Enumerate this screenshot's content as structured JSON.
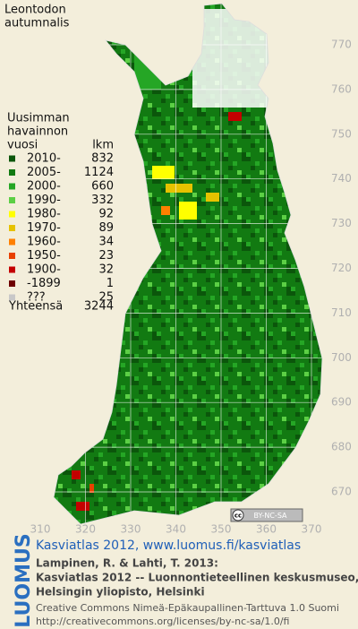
{
  "title": [
    "Leontodon",
    "autumnalis"
  ],
  "legend": {
    "heading": [
      "Uusimman",
      "havainnon",
      "vuosi"
    ],
    "count_heading": "lkm",
    "rows": [
      {
        "label": "2010-",
        "count": 832,
        "color": "#0b560b"
      },
      {
        "label": "2005-",
        "count": 1124,
        "color": "#127a12"
      },
      {
        "label": "2000-",
        "count": 660,
        "color": "#25a625"
      },
      {
        "label": "1990-",
        "count": 332,
        "color": "#5ccf45"
      },
      {
        "label": "1980-",
        "count": 92,
        "color": "#ffff00"
      },
      {
        "label": "1970-",
        "count": 89,
        "color": "#e6c200"
      },
      {
        "label": "1960-",
        "count": 34,
        "color": "#ff8000"
      },
      {
        "label": "1950-",
        "count": 23,
        "color": "#e84000"
      },
      {
        "label": "1900-",
        "count": 32,
        "color": "#c40000"
      },
      {
        "label": "-1899",
        "count": 1,
        "color": "#6e0000"
      },
      {
        "label": "???",
        "count": 25,
        "color": "#c8c8c8"
      }
    ],
    "total_label": "Yhteensä",
    "total": 3244
  },
  "map": {
    "yticks": [
      770,
      760,
      750,
      740,
      730,
      720,
      710,
      700,
      690,
      680,
      670
    ],
    "xticks": [
      310,
      320,
      330,
      340,
      350,
      360,
      370
    ],
    "badge": {
      "icon": "cc",
      "text": "BY-NC-SA"
    }
  },
  "credits": {
    "logo": "LUOMUS",
    "link": "Kasviatlas 2012, www.luomus.fi/kasviatlas",
    "citation": [
      "Lampinen, R. & Lahti, T. 2013:",
      "Kasviatlas 2012 -- Luonnontieteellinen keskusmuseo,",
      "Helsingin yliopisto, Helsinki"
    ],
    "license": [
      "Creative Commons Nimeä-Epäkaupallinen-Tarttuva 1.0 Suomi",
      "http://creativecommons.org/licenses/by-nc-sa/1.0/fi"
    ]
  }
}
